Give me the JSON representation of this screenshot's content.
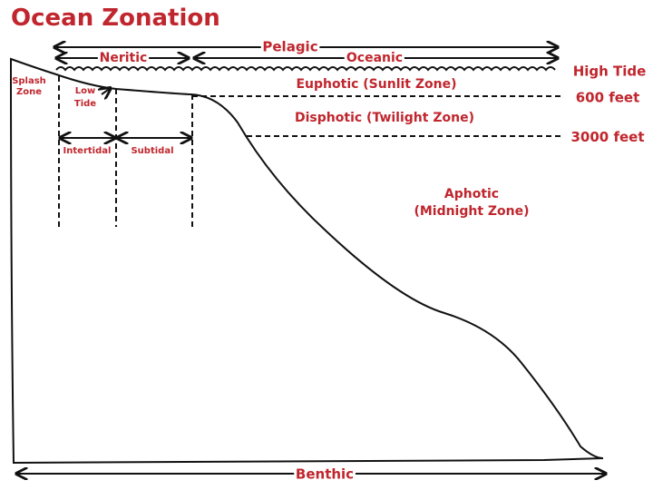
{
  "title": "Ocean Zonation",
  "zones": {
    "pelagic": "Pelagic",
    "neritic": "Neritic",
    "oceanic": "Oceanic",
    "high_tide": "High Tide",
    "euphotic": "Euphotic (Sunlit Zone)",
    "depth_600": "600 feet",
    "disphotic": "Disphotic (Twilight Zone)",
    "depth_3000": "3000 feet",
    "splash_zone": [
      "Splash",
      "Zone"
    ],
    "low_tide": [
      "Low",
      "Tide"
    ],
    "intertidal": "Intertidal",
    "subtidal": "Subtidal",
    "aphotic": [
      "Aphotic",
      "(Midnight Zone)"
    ],
    "benthic": "Benthic"
  }
}
